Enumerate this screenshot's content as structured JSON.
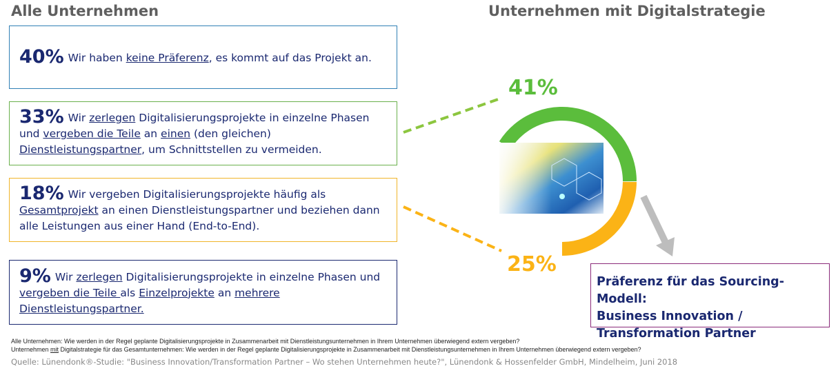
{
  "titles": {
    "left": "Alle Unternehmen",
    "right": "Unternehmen mit Digitalstrategie"
  },
  "boxes": [
    {
      "pct": "40%",
      "color": "#2f7fb5",
      "segments": [
        {
          "t": "Wir haben "
        },
        {
          "t": "keine Präferenz",
          "u": true
        },
        {
          "t": ", es kommt auf das Projekt an."
        }
      ]
    },
    {
      "pct": "33%",
      "color": "#6ab04c",
      "segments": [
        {
          "t": "Wir "
        },
        {
          "t": "zerlegen",
          "u": true
        },
        {
          "t": " Digitalisierungsprojekte in einzelne Phasen und "
        },
        {
          "t": "vergeben die Teile",
          "u": true
        },
        {
          "t": " an "
        },
        {
          "t": "einen",
          "u": true
        },
        {
          "t": " (den gleichen) "
        },
        {
          "t": "Dienstleistungspartner",
          "u": true
        },
        {
          "t": ", um Schnittstellen zu vermeiden."
        }
      ]
    },
    {
      "pct": "18%",
      "color": "#f0b429",
      "segments": [
        {
          "t": "Wir vergeben Digitalisierungsprojekte häufig als "
        },
        {
          "t": "Gesamtprojekt",
          "u": true
        },
        {
          "t": " an einen Dienstleistungspartner und beziehen dann alle Leistungen aus einer Hand (End-to-End)."
        }
      ]
    },
    {
      "pct": "9%",
      "color": "#1a2870",
      "segments": [
        {
          "t": "Wir "
        },
        {
          "t": "zerlegen",
          "u": true
        },
        {
          "t": " Digitalisierungsprojekte in einzelne Phasen und "
        },
        {
          "t": "vergeben die Teile ",
          "u": true
        },
        {
          "t": " als "
        },
        {
          "t": "Einzelprojekte",
          "u": true
        },
        {
          "t": " an "
        },
        {
          "t": "mehrere Dienstleistungspartner.",
          "u": true
        }
      ]
    }
  ],
  "ring": {
    "green_label": "41%",
    "green_value": 41,
    "orange_label": "25%",
    "orange_value": 25,
    "green": "#5bbd3c",
    "orange": "#fbb316"
  },
  "preference": {
    "line1": "Präferenz für das Sourcing-Modell:",
    "line2": "Business Innovation /",
    "line3": "Transformation Partner"
  },
  "footer": {
    "q1": "Alle Unternehmen: Wie werden in der Regel geplante Digitalisierungsprojekte in Zusammenarbeit mit Dienstleistungsunternehmen in Ihrem Unternehmen überwiegend extern vergeben?",
    "q2a": "Unternehmen ",
    "q2mit": "mit",
    "q2b": " Digitalstrategie für das Gesamtunternehmen: Wie werden in der Regel geplante Digitalisierungsprojekte in Zusammenarbeit mit Dienstleistungsunternehmen in Ihrem Unternehmen überwiegend extern vergeben?",
    "source": "Quelle: Lünendonk®-Studie: \"Business Innovation/Transformation Partner – Wo stehen Unternehmen heute?\", Lünendonk & Hossenfelder GmbH, Mindelheim, Juni 2018"
  }
}
